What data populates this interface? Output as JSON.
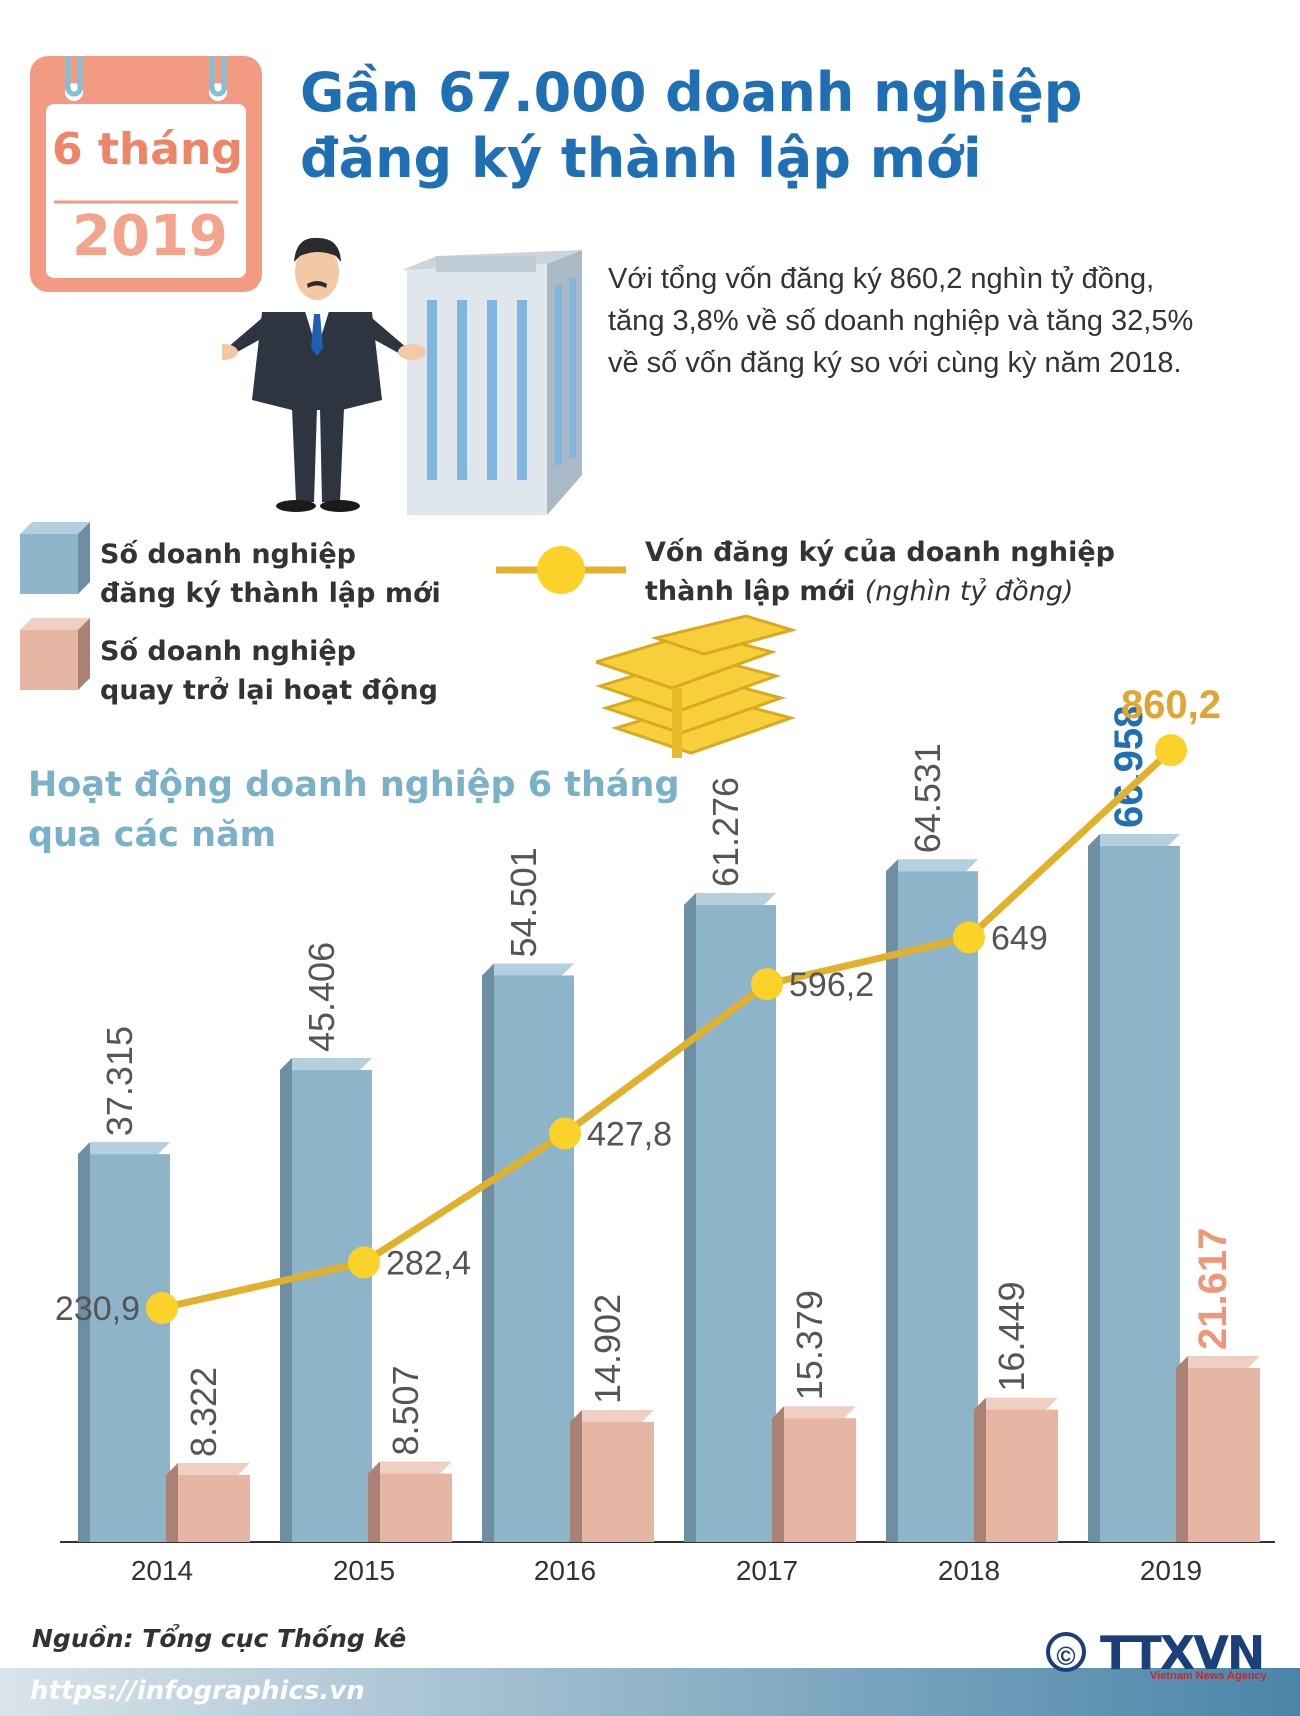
{
  "badge": {
    "top": "6 tháng",
    "year": "2019"
  },
  "title": {
    "line1": "Gần 67.000 doanh nghiệp",
    "line2": "đăng ký thành lập mới"
  },
  "summary": {
    "line1": "Với tổng vốn đăng ký 860,2 nghìn tỷ đồng,",
    "line2": "tăng 3,8% về số doanh nghiệp và tăng 32,5%",
    "line3": "về số vốn đăng ký so với cùng kỳ năm 2018."
  },
  "legend": {
    "new": {
      "line1": "Số doanh nghiệp",
      "line2": "đăng ký thành lập mới"
    },
    "returned": {
      "line1": "Số doanh nghiệp",
      "line2": "quay trở lại hoạt động"
    },
    "capital": {
      "line1": "Vốn đăng ký của doanh nghiệp",
      "line2": "thành lập mới",
      "unit": "(nghìn tỷ đồng)"
    }
  },
  "chart_heading": {
    "line1": "Hoạt động doanh nghiệp 6 tháng",
    "line2": "qua các năm"
  },
  "chart_data": {
    "type": "bar",
    "categories": [
      "2014",
      "2015",
      "2016",
      "2017",
      "2018",
      "2019"
    ],
    "series": [
      {
        "name": "Số doanh nghiệp đăng ký thành lập mới",
        "kind": "bar",
        "values": [
          37315,
          45406,
          54501,
          61276,
          64531,
          66958
        ],
        "labels": [
          "37.315",
          "45.406",
          "54.501",
          "61.276",
          "64.531",
          "66.958"
        ]
      },
      {
        "name": "Số doanh nghiệp quay trở lại hoạt động",
        "kind": "bar",
        "values": [
          8322,
          8507,
          14902,
          15379,
          16449,
          21617
        ],
        "labels": [
          "8.322",
          "8.507",
          "14.902",
          "15.379",
          "16.449",
          "21.617"
        ]
      },
      {
        "name": "Vốn đăng ký của doanh nghiệp thành lập mới (nghìn tỷ đồng)",
        "kind": "line",
        "values": [
          230.9,
          282.4,
          427.8,
          596.2,
          649,
          860.2
        ],
        "labels": [
          "230,9",
          "282,4",
          "427,8",
          "596,2",
          "649",
          "860,2"
        ]
      }
    ],
    "colors": {
      "new": "#8eb4c9",
      "returned": "#e6b5a4",
      "capital": "#e1b12c",
      "capital_point": "#fbd22a",
      "highlight_new": "#1f6fb5",
      "highlight_capital": "#e1a530",
      "highlight_returned": "#ee9677"
    },
    "xlabel": "",
    "ylabel": ""
  },
  "source": "Nguồn: Tổng cục Thống kê",
  "footer": {
    "url": "https://infographics.vn"
  },
  "logo": {
    "copyright": "©",
    "name": "TTXVN",
    "sub": "Vietnam News Agency"
  }
}
